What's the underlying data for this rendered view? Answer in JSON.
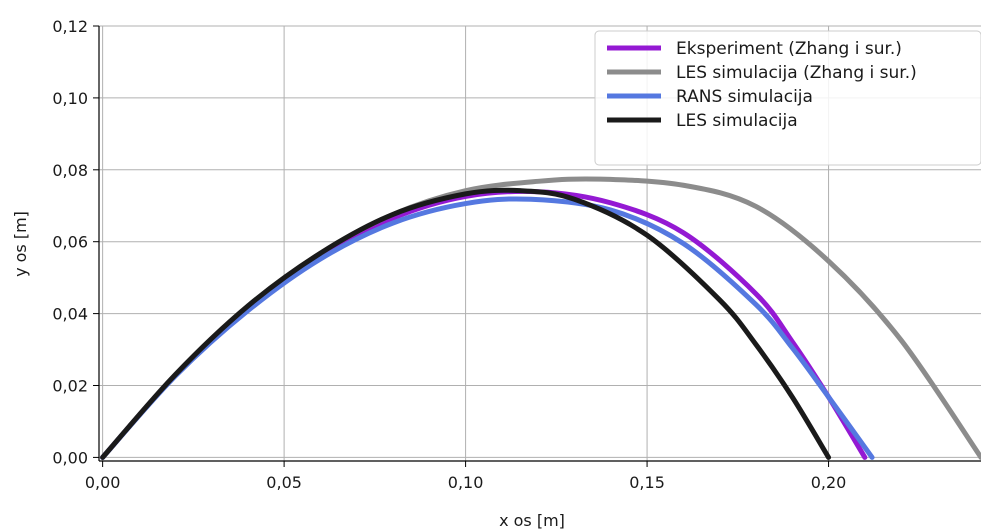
{
  "chart_data": {
    "type": "line",
    "title": "",
    "xlabel": "x os [m]",
    "ylabel": "y os [m]",
    "xlim": [
      -0.001,
      0.242
    ],
    "ylim": [
      -0.001,
      0.12
    ],
    "x_ticks": [
      0.0,
      0.05,
      0.1,
      0.15,
      0.2
    ],
    "x_tick_labels": [
      "0,00",
      "0,05",
      "0,10",
      "0,15",
      "0,20"
    ],
    "y_ticks": [
      0.0,
      0.02,
      0.04,
      0.06,
      0.08,
      0.1,
      0.12
    ],
    "y_tick_labels": [
      "0,00",
      "0,02",
      "0,04",
      "0,06",
      "0,08",
      "0,10",
      "0,12"
    ],
    "grid": true,
    "legend_position": "top-right",
    "series": [
      {
        "name": "Eksperiment (Zhang i sur.)",
        "color": "#9419d3",
        "x": [
          0.0,
          0.02,
          0.04,
          0.06,
          0.08,
          0.1,
          0.12,
          0.14,
          0.16,
          0.18,
          0.19,
          0.2,
          0.21
        ],
        "y": [
          0.0,
          0.0228,
          0.0416,
          0.0562,
          0.0666,
          0.0726,
          0.0739,
          0.0708,
          0.0625,
          0.0455,
          0.0322,
          0.0168,
          0.0
        ]
      },
      {
        "name": "LES simulacija (Zhang i sur.)",
        "color": "#8c8c8c",
        "x": [
          0.0,
          0.02,
          0.04,
          0.06,
          0.08,
          0.1,
          0.12,
          0.137,
          0.16,
          0.18,
          0.2,
          0.22,
          0.242
        ],
        "y": [
          0.0,
          0.0228,
          0.0418,
          0.0568,
          0.0676,
          0.0742,
          0.0768,
          0.0774,
          0.0757,
          0.0698,
          0.0546,
          0.0326,
          0.0
        ]
      },
      {
        "name": "RANS simulacija",
        "color": "#5578e0",
        "x": [
          0.0,
          0.02,
          0.04,
          0.06,
          0.08,
          0.1,
          0.118,
          0.14,
          0.16,
          0.18,
          0.19,
          0.2,
          0.212
        ],
        "y": [
          0.0,
          0.0226,
          0.0408,
          0.0552,
          0.0652,
          0.0706,
          0.0718,
          0.0688,
          0.0595,
          0.0425,
          0.0305,
          0.0168,
          0.0
        ]
      },
      {
        "name": "LES simulacija",
        "color": "#1a1a1a",
        "x": [
          0.0,
          0.02,
          0.04,
          0.06,
          0.08,
          0.1,
          0.115,
          0.13,
          0.15,
          0.17,
          0.18,
          0.19,
          0.2
        ],
        "y": [
          0.0,
          0.023,
          0.0421,
          0.0568,
          0.0676,
          0.0733,
          0.0742,
          0.0718,
          0.0618,
          0.0438,
          0.0314,
          0.0168,
          0.0
        ]
      }
    ]
  }
}
